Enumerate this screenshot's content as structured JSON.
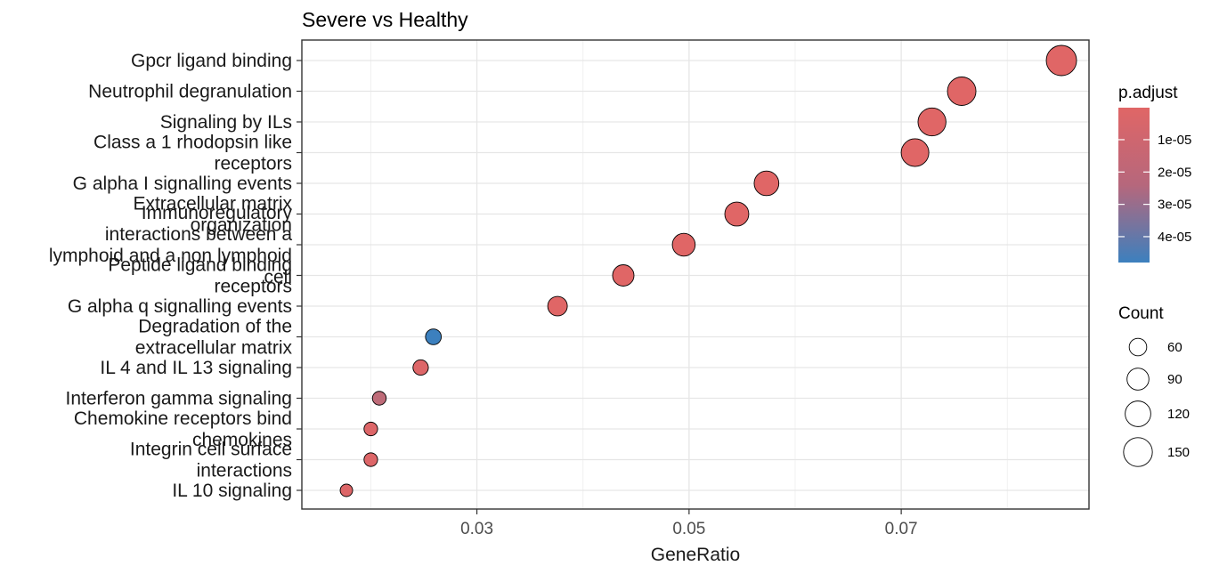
{
  "chart_data": {
    "type": "scatter",
    "title": "Severe vs Healthy",
    "xlabel": "GeneRatio",
    "ylabel": "",
    "xlim": [
      0.0135,
      0.0877
    ],
    "xticks": [
      "0.03",
      "0.05",
      "0.07"
    ],
    "xtick_values": [
      0.03,
      0.05,
      0.07
    ],
    "grid": true,
    "legend_position": "right",
    "categories": [
      "Gpcr ligand binding",
      "Neutrophil degranulation",
      "Signaling by ILs",
      "Class a 1 rhodopsin like receptors",
      "G alpha I signalling events",
      "Extracellular matrix organization",
      "Immunoregulatory interactions between a lymphoid and a non lymphoid cell",
      "Peptide ligand binding receptors",
      "G alpha q signalling events",
      "Degradation of the extracellular matrix",
      "IL 4 and IL 13 signaling",
      "Interferon gamma signaling",
      "Chemokine receptors bind chemokines",
      "Integrin cell surface interactions",
      "IL 10 signaling"
    ],
    "category_lines": [
      [
        "Gpcr ligand binding"
      ],
      [
        "Neutrophil degranulation"
      ],
      [
        "Signaling by ILs"
      ],
      [
        "Class a 1 rhodopsin like",
        "receptors"
      ],
      [
        "G alpha I signalling events"
      ],
      [
        "Extracellular matrix",
        "organization"
      ],
      [
        "Immunoregulatory",
        "interactions between a",
        "lymphoid and a non lymphoid",
        "cell"
      ],
      [
        "Peptide ligand binding",
        "receptors"
      ],
      [
        "G alpha q signalling events"
      ],
      [
        "Degradation of the",
        "extracellular matrix"
      ],
      [
        "IL 4 and IL 13 signaling"
      ],
      [
        "Interferon gamma signaling"
      ],
      [
        "Chemokine receptors bind",
        "chemokines"
      ],
      [
        "Integrin cell surface",
        "interactions"
      ],
      [
        "IL 10 signaling"
      ]
    ],
    "gene_ratio": [
      0.0851,
      0.0757,
      0.0729,
      0.0713,
      0.0573,
      0.0545,
      0.0495,
      0.0438,
      0.0376,
      0.0259,
      0.0247,
      0.0208,
      0.02,
      0.02,
      0.0177
    ],
    "count": [
      165,
      147,
      142,
      139,
      112,
      106,
      97,
      86,
      73,
      50,
      48,
      40,
      39,
      39,
      34
    ],
    "p_adjust": [
      1e-07,
      1e-07,
      1e-07,
      1e-07,
      1e-07,
      1e-07,
      1e-07,
      1e-07,
      2e-07,
      4.8e-05,
      1e-06,
      1e-05,
      1e-06,
      1e-06,
      1e-06
    ],
    "color_legend": {
      "title": "p.adjust",
      "ticks": [
        "1e-05",
        "2e-05",
        "3e-05",
        "4e-05"
      ],
      "tick_values": [
        1e-05,
        2e-05,
        3e-05,
        4e-05
      ],
      "range": [
        1e-07,
        4.8e-05
      ],
      "low_color": "#E06666",
      "high_color": "#3C80BE"
    },
    "size_legend": {
      "title": "Count",
      "values": [
        60,
        90,
        120,
        150
      ],
      "labels": [
        "60",
        "90",
        "120",
        "150"
      ]
    }
  }
}
